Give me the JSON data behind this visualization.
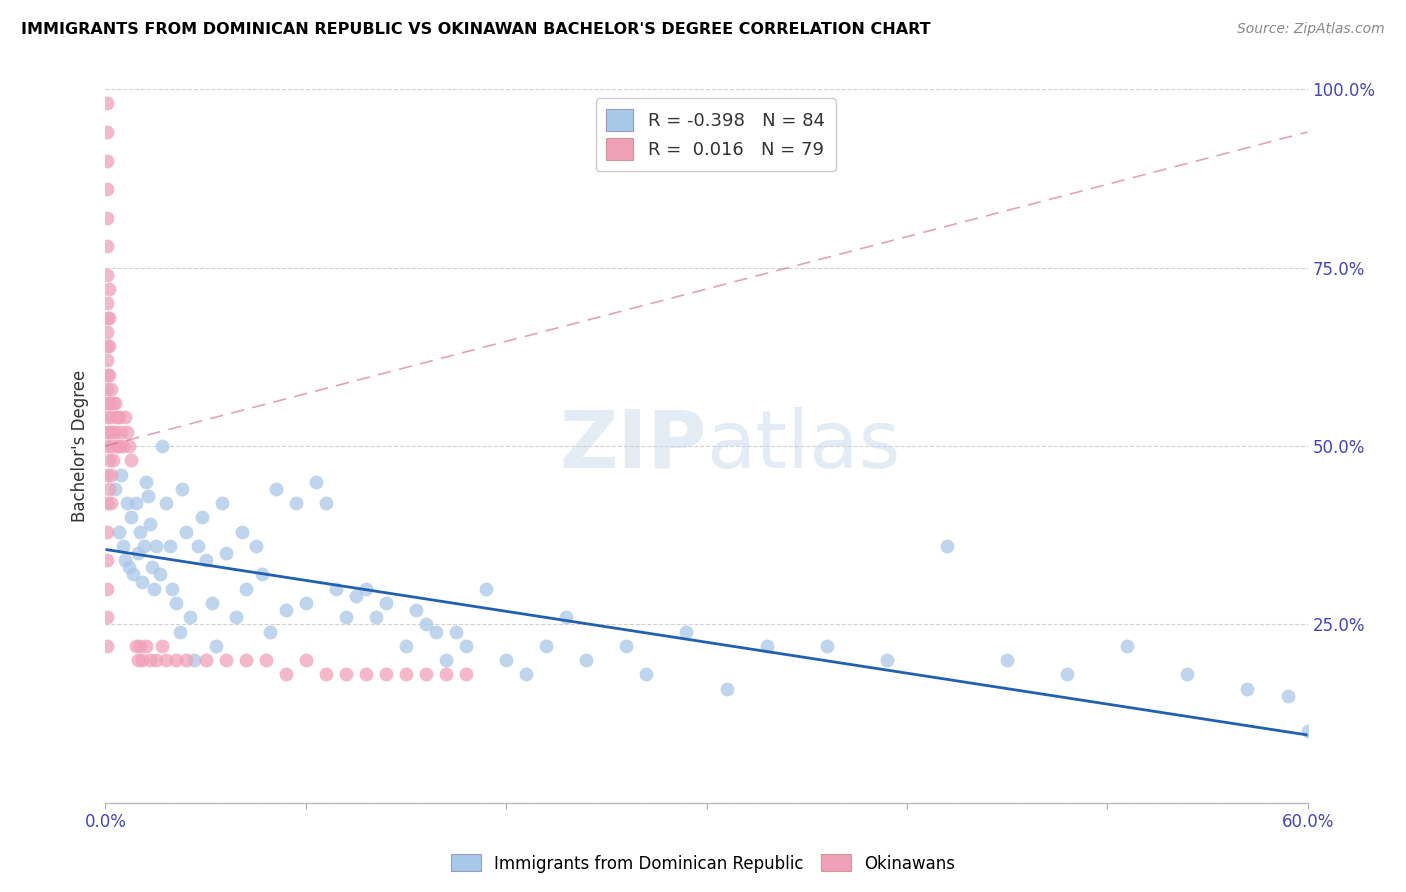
{
  "title": "IMMIGRANTS FROM DOMINICAN REPUBLIC VS OKINAWAN BACHELOR'S DEGREE CORRELATION CHART",
  "source": "Source: ZipAtlas.com",
  "ylabel": "Bachelor's Degree",
  "xlim": [
    0.0,
    0.6
  ],
  "ylim": [
    0.0,
    1.0
  ],
  "blue_color": "#a8c8e8",
  "pink_color": "#f0a0b8",
  "blue_line_color": "#2060b0",
  "pink_line_color": "#d06880",
  "watermark_zip": "ZIP",
  "watermark_atlas": "atlas",
  "R_blue": "-0.398",
  "N_blue": "84",
  "R_pink": "0.016",
  "N_pink": "79",
  "blue_trend_x": [
    0.0,
    0.6
  ],
  "blue_trend_y": [
    0.355,
    0.095
  ],
  "pink_trend_x": [
    0.0,
    0.6
  ],
  "pink_trend_y": [
    0.5,
    0.94
  ],
  "blue_dots_x": [
    0.005,
    0.007,
    0.008,
    0.009,
    0.01,
    0.011,
    0.012,
    0.013,
    0.014,
    0.015,
    0.016,
    0.017,
    0.018,
    0.019,
    0.02,
    0.021,
    0.022,
    0.023,
    0.024,
    0.025,
    0.027,
    0.028,
    0.03,
    0.032,
    0.033,
    0.035,
    0.037,
    0.038,
    0.04,
    0.042,
    0.044,
    0.046,
    0.048,
    0.05,
    0.053,
    0.055,
    0.058,
    0.06,
    0.065,
    0.068,
    0.07,
    0.075,
    0.078,
    0.082,
    0.085,
    0.09,
    0.095,
    0.1,
    0.105,
    0.11,
    0.115,
    0.12,
    0.125,
    0.13,
    0.135,
    0.14,
    0.15,
    0.155,
    0.16,
    0.165,
    0.17,
    0.175,
    0.18,
    0.19,
    0.2,
    0.21,
    0.22,
    0.23,
    0.24,
    0.26,
    0.27,
    0.29,
    0.31,
    0.33,
    0.36,
    0.39,
    0.42,
    0.45,
    0.48,
    0.51,
    0.54,
    0.57,
    0.59,
    0.6
  ],
  "blue_dots_y": [
    0.44,
    0.38,
    0.46,
    0.36,
    0.34,
    0.42,
    0.33,
    0.4,
    0.32,
    0.42,
    0.35,
    0.38,
    0.31,
    0.36,
    0.45,
    0.43,
    0.39,
    0.33,
    0.3,
    0.36,
    0.32,
    0.5,
    0.42,
    0.36,
    0.3,
    0.28,
    0.24,
    0.44,
    0.38,
    0.26,
    0.2,
    0.36,
    0.4,
    0.34,
    0.28,
    0.22,
    0.42,
    0.35,
    0.26,
    0.38,
    0.3,
    0.36,
    0.32,
    0.24,
    0.44,
    0.27,
    0.42,
    0.28,
    0.45,
    0.42,
    0.3,
    0.26,
    0.29,
    0.3,
    0.26,
    0.28,
    0.22,
    0.27,
    0.25,
    0.24,
    0.2,
    0.24,
    0.22,
    0.3,
    0.2,
    0.18,
    0.22,
    0.26,
    0.2,
    0.22,
    0.18,
    0.24,
    0.16,
    0.22,
    0.22,
    0.2,
    0.36,
    0.2,
    0.18,
    0.22,
    0.18,
    0.16,
    0.15,
    0.1
  ],
  "pink_dots_x": [
    0.001,
    0.001,
    0.001,
    0.001,
    0.001,
    0.001,
    0.001,
    0.001,
    0.001,
    0.001,
    0.001,
    0.001,
    0.001,
    0.001,
    0.001,
    0.001,
    0.001,
    0.001,
    0.001,
    0.001,
    0.001,
    0.001,
    0.001,
    0.001,
    0.001,
    0.002,
    0.002,
    0.002,
    0.002,
    0.002,
    0.002,
    0.002,
    0.002,
    0.003,
    0.003,
    0.003,
    0.003,
    0.003,
    0.004,
    0.004,
    0.004,
    0.005,
    0.005,
    0.006,
    0.006,
    0.007,
    0.007,
    0.008,
    0.009,
    0.01,
    0.011,
    0.012,
    0.013,
    0.015,
    0.016,
    0.017,
    0.018,
    0.02,
    0.022,
    0.025,
    0.028,
    0.03,
    0.035,
    0.04,
    0.05,
    0.06,
    0.07,
    0.08,
    0.09,
    0.1,
    0.11,
    0.12,
    0.13,
    0.14,
    0.15,
    0.16,
    0.17,
    0.18
  ],
  "pink_dots_y": [
    0.98,
    0.94,
    0.9,
    0.86,
    0.82,
    0.78,
    0.74,
    0.7,
    0.66,
    0.62,
    0.58,
    0.54,
    0.5,
    0.46,
    0.42,
    0.38,
    0.34,
    0.3,
    0.26,
    0.22,
    0.52,
    0.56,
    0.6,
    0.64,
    0.68,
    0.72,
    0.68,
    0.64,
    0.6,
    0.56,
    0.52,
    0.48,
    0.44,
    0.58,
    0.54,
    0.5,
    0.46,
    0.42,
    0.56,
    0.52,
    0.48,
    0.56,
    0.52,
    0.54,
    0.5,
    0.54,
    0.5,
    0.52,
    0.5,
    0.54,
    0.52,
    0.5,
    0.48,
    0.22,
    0.2,
    0.22,
    0.2,
    0.22,
    0.2,
    0.2,
    0.22,
    0.2,
    0.2,
    0.2,
    0.2,
    0.2,
    0.2,
    0.2,
    0.18,
    0.2,
    0.18,
    0.18,
    0.18,
    0.18,
    0.18,
    0.18,
    0.18,
    0.18
  ]
}
